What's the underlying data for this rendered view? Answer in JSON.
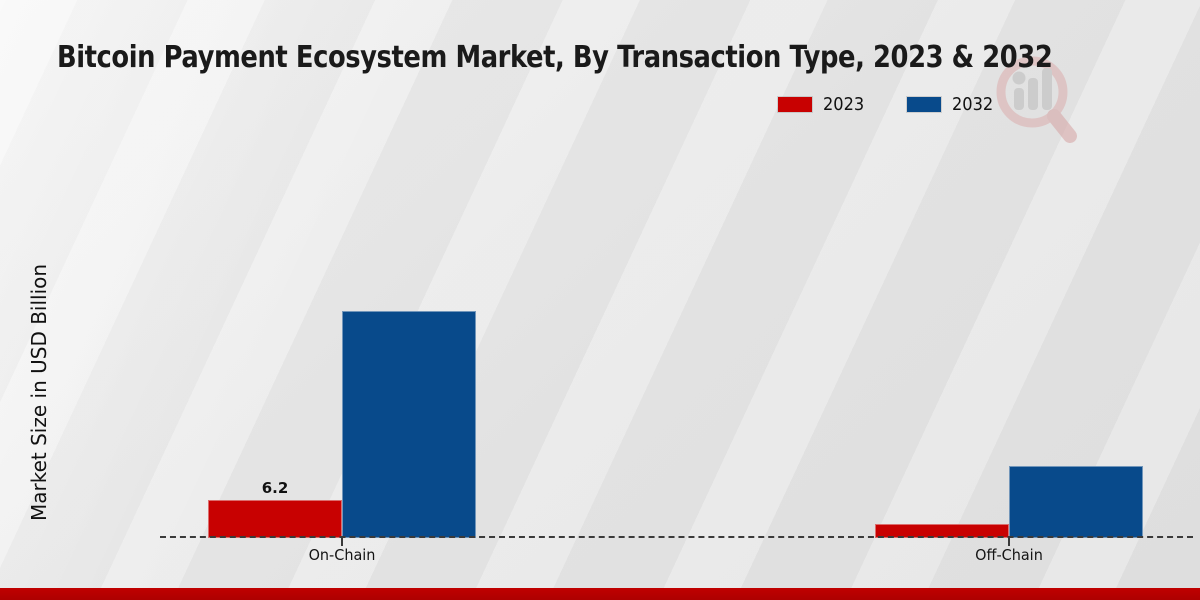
{
  "title": "Bitcoin Payment Ecosystem Market, By Transaction Type, 2023 & 2032",
  "ylabel": "Market Size in USD Billion",
  "legend": [
    {
      "label": "2023",
      "color": "#c80101"
    },
    {
      "label": "2032",
      "color": "#084a8b"
    }
  ],
  "footer_band_color": "#c00000",
  "chart_data": {
    "type": "bar",
    "categories": [
      "On-Chain",
      "Off-Chain"
    ],
    "series": [
      {
        "name": "2023",
        "color": "#c80101",
        "values": [
          6.2,
          2.3
        ],
        "labels": [
          "6.2",
          null
        ]
      },
      {
        "name": "2032",
        "color": "#084a8b",
        "values": [
          37.0,
          11.7
        ],
        "labels": [
          null,
          null
        ]
      }
    ],
    "ylabel": "Market Size in USD Billion",
    "xlabel": "",
    "ylim": [
      0,
      40
    ],
    "grid": false,
    "legend_position": "top-right",
    "baseline_style": "dashed"
  }
}
